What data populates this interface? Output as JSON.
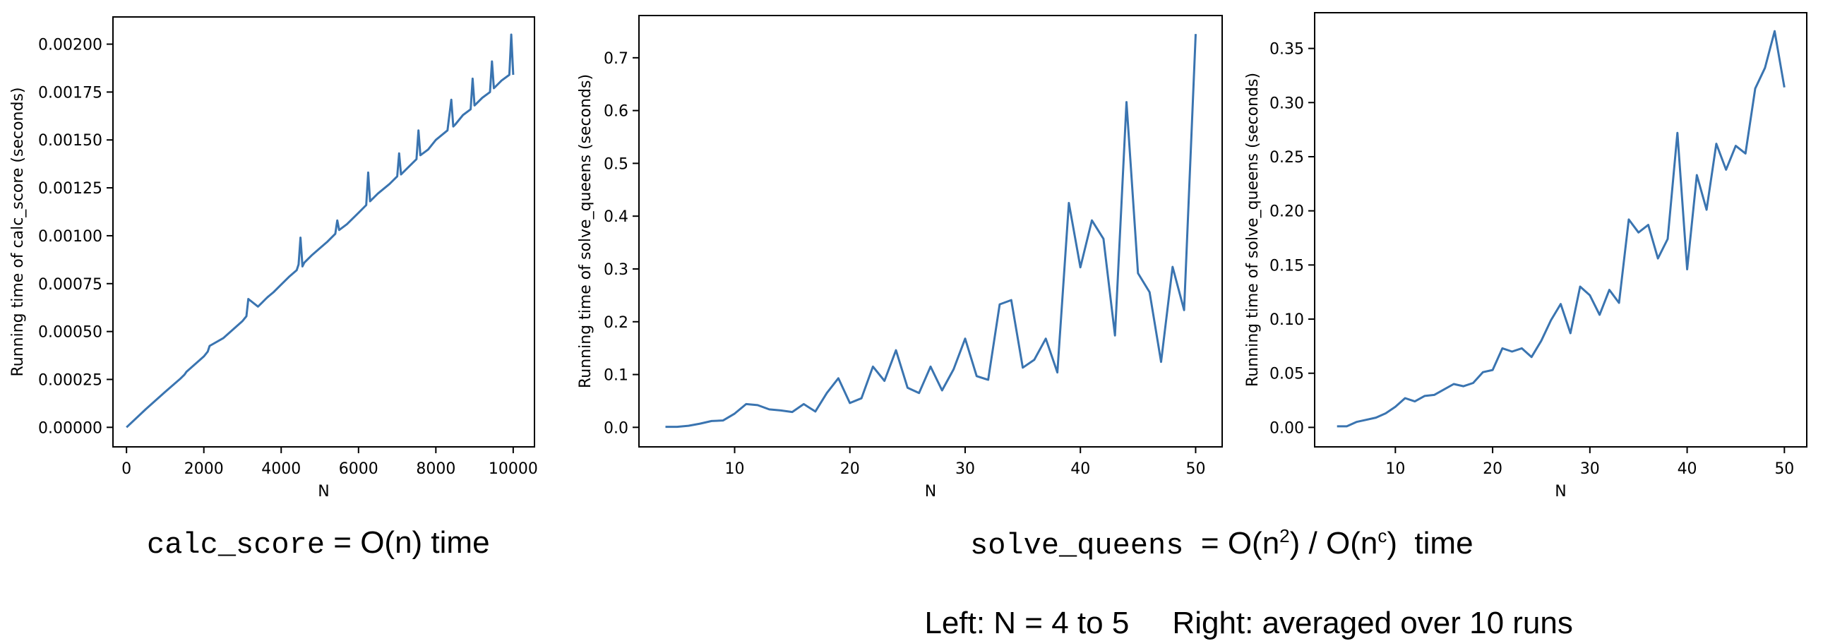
{
  "chart_data": [
    {
      "type": "line",
      "xlabel": "N",
      "ylabel": "Running time of calc_score (seconds)",
      "xlim": [
        -350,
        10550
      ],
      "ylim": [
        -0.000102,
        0.002142
      ],
      "xticks": [
        0,
        2000,
        4000,
        6000,
        8000,
        10000
      ],
      "xtick_labels": [
        "0",
        "2000",
        "4000",
        "6000",
        "8000",
        "10000"
      ],
      "yticks": [
        0,
        0.00025,
        0.0005,
        0.00075,
        0.001,
        0.00125,
        0.0015,
        0.00175,
        0.002
      ],
      "ytick_labels": [
        "0.00000",
        "0.00025",
        "0.00050",
        "0.00075",
        "0.00100",
        "0.00125",
        "0.00150",
        "0.00175",
        "0.00200"
      ],
      "grid": false,
      "series": [
        {
          "x": [
            0,
            500,
            1000,
            1400,
            1500,
            1550,
            2000,
            2100,
            2150,
            2500,
            3000,
            3100,
            3150,
            3400,
            3500,
            3600,
            3650,
            3800,
            4000,
            4200,
            4400,
            4450,
            4500,
            4550,
            4600,
            4800,
            5000,
            5200,
            5400,
            5450,
            5500,
            5700,
            6000,
            6200,
            6250,
            6300,
            6500,
            6800,
            7000,
            7050,
            7100,
            7300,
            7500,
            7550,
            7600,
            7800,
            8000,
            8300,
            8400,
            8450,
            8500,
            8700,
            8900,
            8950,
            9000,
            9200,
            9400,
            9450,
            9500,
            9700,
            9900,
            9950,
            10000
          ],
          "y": [
            0,
            9.5e-05,
            0.000185,
            0.000255,
            0.000275,
            0.00029,
            0.00037,
            0.000395,
            0.000425,
            0.000465,
            0.000555,
            0.00058,
            0.00067,
            0.00063,
            0.00065,
            0.00067,
            0.00068,
            0.000705,
            0.000745,
            0.000785,
            0.00082,
            0.00085,
            0.00099,
            0.00084,
            0.00086,
            0.0009,
            0.000935,
            0.00097,
            0.00101,
            0.00108,
            0.00103,
            0.00106,
            0.00112,
            0.00116,
            0.00133,
            0.00118,
            0.00122,
            0.00127,
            0.00131,
            0.00143,
            0.00132,
            0.00136,
            0.0014,
            0.00155,
            0.00142,
            0.00145,
            0.0015,
            0.00155,
            0.00171,
            0.00157,
            0.00158,
            0.00163,
            0.00166,
            0.00182,
            0.00168,
            0.00172,
            0.00175,
            0.00191,
            0.00177,
            0.00181,
            0.00184,
            0.00205,
            0.00184
          ]
        }
      ]
    },
    {
      "type": "line",
      "xlabel": "N",
      "ylabel": "Running time of solve_queens (seconds)",
      "xlim": [
        1.7,
        52.3
      ],
      "ylim": [
        -0.037,
        0.78
      ],
      "xticks": [
        10,
        20,
        30,
        40,
        50
      ],
      "xtick_labels": [
        "10",
        "20",
        "30",
        "40",
        "50"
      ],
      "yticks": [
        0,
        0.1,
        0.2,
        0.3,
        0.4,
        0.5,
        0.6,
        0.7
      ],
      "ytick_labels": [
        "0.0",
        "0.1",
        "0.2",
        "0.3",
        "0.4",
        "0.5",
        "0.6",
        "0.7"
      ],
      "grid": false,
      "series": [
        {
          "x": [
            4,
            5,
            6,
            7,
            8,
            9,
            10,
            11,
            12,
            13,
            14,
            15,
            16,
            17,
            18,
            19,
            20,
            21,
            22,
            23,
            24,
            25,
            26,
            27,
            28,
            29,
            30,
            31,
            32,
            33,
            34,
            35,
            36,
            37,
            38,
            39,
            40,
            41,
            42,
            43,
            44,
            45,
            46,
            47,
            48,
            49,
            50
          ],
          "y": [
            0.001,
            0.001,
            0.003,
            0.007,
            0.012,
            0.013,
            0.026,
            0.044,
            0.042,
            0.034,
            0.032,
            0.029,
            0.044,
            0.03,
            0.065,
            0.093,
            0.046,
            0.055,
            0.115,
            0.088,
            0.146,
            0.075,
            0.065,
            0.115,
            0.07,
            0.11,
            0.168,
            0.097,
            0.09,
            0.233,
            0.241,
            0.113,
            0.128,
            0.168,
            0.104,
            0.425,
            0.303,
            0.392,
            0.357,
            0.174,
            0.616,
            0.292,
            0.256,
            0.124,
            0.304,
            0.222,
            0.745
          ]
        }
      ]
    },
    {
      "type": "line",
      "xlabel": "N",
      "ylabel": "Running time of solve_queens (seconds)",
      "xlim": [
        1.7,
        52.3
      ],
      "ylim": [
        -0.018,
        0.383
      ],
      "xticks": [
        10,
        20,
        30,
        40,
        50
      ],
      "xtick_labels": [
        "10",
        "20",
        "30",
        "40",
        "50"
      ],
      "yticks": [
        0,
        0.05,
        0.1,
        0.15,
        0.2,
        0.25,
        0.3,
        0.35
      ],
      "ytick_labels": [
        "0.00",
        "0.05",
        "0.10",
        "0.15",
        "0.20",
        "0.25",
        "0.30",
        "0.35"
      ],
      "grid": false,
      "series": [
        {
          "x": [
            4,
            5,
            6,
            7,
            8,
            9,
            10,
            11,
            12,
            13,
            14,
            15,
            16,
            17,
            18,
            19,
            20,
            21,
            22,
            23,
            24,
            25,
            26,
            27,
            28,
            29,
            30,
            31,
            32,
            33,
            34,
            35,
            36,
            37,
            38,
            39,
            40,
            41,
            42,
            43,
            44,
            45,
            46,
            47,
            48,
            49,
            50
          ],
          "y": [
            0.001,
            0.001,
            0.005,
            0.007,
            0.009,
            0.013,
            0.019,
            0.027,
            0.024,
            0.029,
            0.03,
            0.035,
            0.04,
            0.038,
            0.041,
            0.051,
            0.053,
            0.073,
            0.07,
            0.073,
            0.065,
            0.08,
            0.099,
            0.114,
            0.087,
            0.13,
            0.122,
            0.104,
            0.127,
            0.115,
            0.192,
            0.18,
            0.187,
            0.156,
            0.174,
            0.272,
            0.146,
            0.233,
            0.201,
            0.262,
            0.238,
            0.26,
            0.253,
            0.313,
            0.332,
            0.366,
            0.314
          ]
        }
      ]
    }
  ],
  "captions": {
    "left_mono": "calc_score",
    "left_text": " = O(n) time",
    "right_mono": "solve_queens",
    "right_text_1": "  = O(n",
    "right_sup_1": "2",
    "right_text_2": ") / O(n",
    "right_sup_2": "c",
    "right_text_3": ")  time",
    "right_line2": "Left: N = 4 to 5     Right: averaged over 10 runs"
  }
}
